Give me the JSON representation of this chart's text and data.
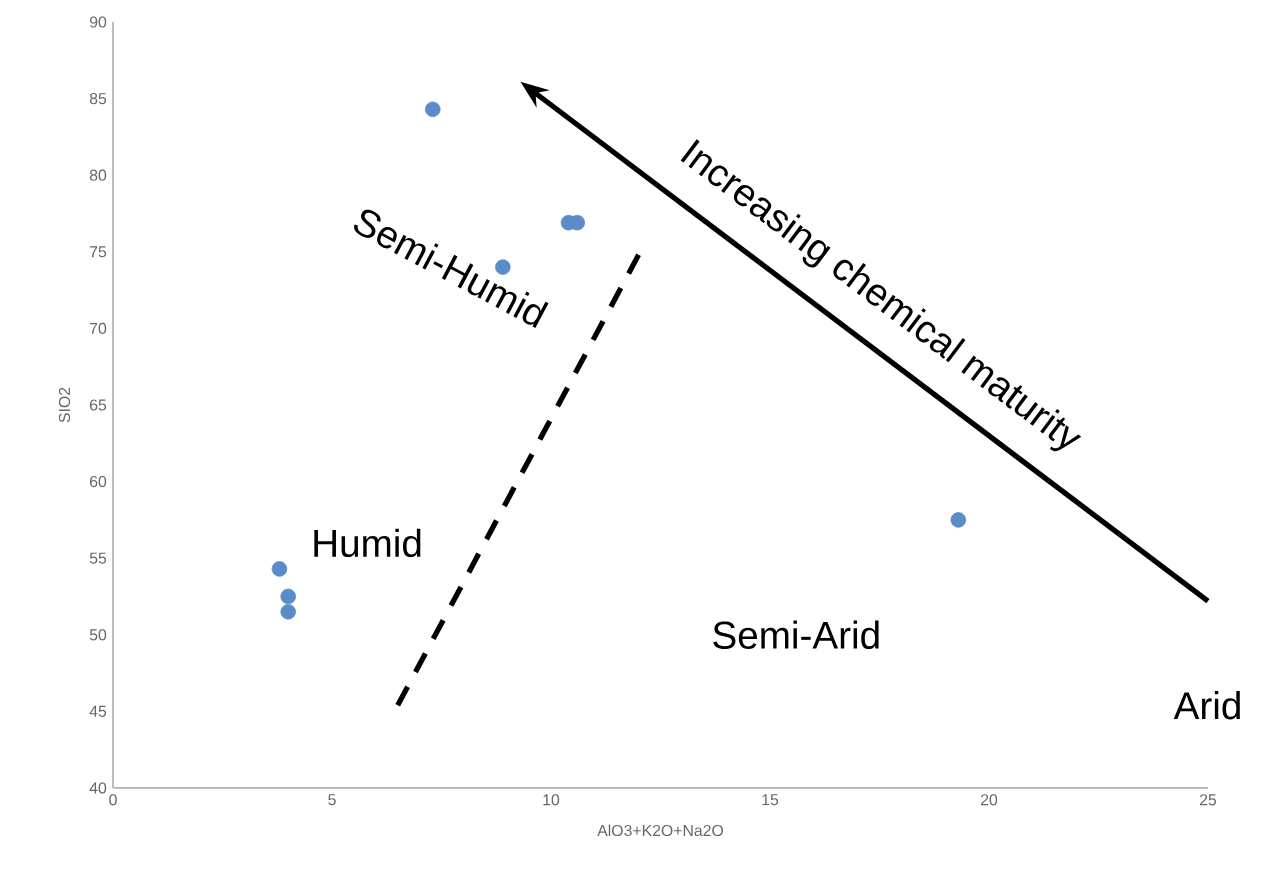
{
  "chart_data": {
    "type": "scatter",
    "xlabel": "AlO3+K2O+Na2O",
    "ylabel": "SIO2",
    "xlim": [
      0,
      25
    ],
    "ylim": [
      40,
      90
    ],
    "xticks": [
      0,
      5,
      10,
      15,
      20,
      25
    ],
    "yticks": [
      40,
      45,
      50,
      55,
      60,
      65,
      70,
      75,
      80,
      85,
      90
    ],
    "grid": false,
    "series": [
      {
        "color": "#5b8bc9",
        "marker": "circle",
        "x": [
          7.3,
          10.4,
          10.6,
          8.9,
          19.3,
          3.8,
          4.0,
          4.0
        ],
        "values": [
          84.3,
          76.9,
          76.9,
          74.0,
          57.5,
          54.3,
          52.5,
          51.5
        ]
      },
      {
        "type": "line",
        "color": "#000000",
        "line_style": "dashed",
        "marker": "none",
        "x": [
          6.5,
          12.0
        ],
        "values": [
          45.4,
          74.8
        ]
      }
    ],
    "annotations": [
      "Increasing chemical maturity",
      "Semi-Humid",
      "Humid",
      "Semi-Arid",
      "Arid"
    ]
  }
}
